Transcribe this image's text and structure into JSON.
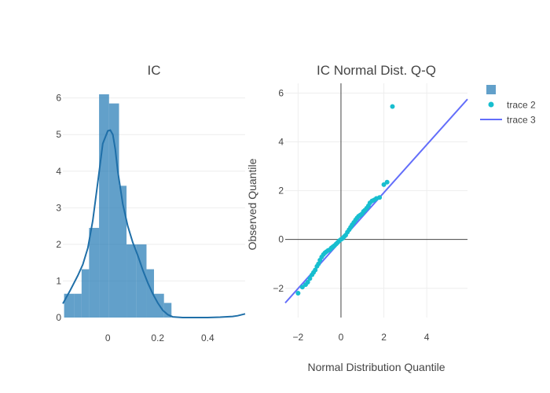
{
  "colors": {
    "hist_fill": "#1f77b4",
    "kde_line": "#1f6fa8",
    "scatter": "#17becf",
    "ref_line": "#636efa",
    "grid": "#eeeeee",
    "zeroline": "#444444",
    "text": "#444444"
  },
  "chart_data": [
    {
      "type": "bar",
      "subtype": "histogram_with_kde",
      "title": "IC",
      "xlabel": "",
      "ylabel": "",
      "xlim": [
        -0.18,
        0.55
      ],
      "ylim": [
        0,
        6.4
      ],
      "xticks": [
        0,
        0.2,
        0.4
      ],
      "xtick_labels": [
        "0",
        "0.2",
        "0.4"
      ],
      "yticks": [
        0,
        1,
        2,
        3,
        4,
        5,
        6
      ],
      "ytick_labels": [
        "0",
        "1",
        "2",
        "3",
        "4",
        "5",
        "6"
      ],
      "bin_edges": [
        -0.175,
        -0.135,
        -0.105,
        -0.075,
        -0.035,
        0.005,
        0.045,
        0.075,
        0.115,
        0.155,
        0.185,
        0.225,
        0.255
      ],
      "values": [
        0.65,
        0.65,
        1.32,
        2.45,
        6.1,
        5.85,
        3.6,
        2.0,
        2.0,
        1.32,
        0.65,
        0.4
      ],
      "kde_x": [
        -0.18,
        -0.15,
        -0.12,
        -0.1,
        -0.08,
        -0.06,
        -0.04,
        -0.02,
        0.0,
        0.01,
        0.02,
        0.03,
        0.04,
        0.06,
        0.08,
        0.1,
        0.12,
        0.14,
        0.16,
        0.18,
        0.2,
        0.22,
        0.24,
        0.26,
        0.3,
        0.35,
        0.4,
        0.45,
        0.5,
        0.52,
        0.55
      ],
      "kde_y": [
        0.38,
        0.75,
        1.15,
        1.45,
        1.9,
        2.65,
        3.7,
        4.75,
        5.1,
        5.12,
        5.0,
        4.6,
        4.0,
        3.1,
        2.5,
        2.05,
        1.7,
        1.3,
        0.95,
        0.65,
        0.4,
        0.2,
        0.08,
        0.02,
        0.0,
        0.0,
        0.0,
        0.01,
        0.03,
        0.05,
        0.1
      ]
    },
    {
      "type": "scatter",
      "subtype": "qq_plot",
      "title": "IC Normal Dist. Q-Q",
      "xlabel": "Normal Distribution Quantile",
      "ylabel": "Observed Quantile",
      "xlim": [
        -2.6,
        5.9
      ],
      "ylim": [
        -3.2,
        6.4
      ],
      "xticks": [
        -2,
        0,
        2,
        4
      ],
      "xtick_labels": [
        "−2",
        "0",
        "2",
        "4"
      ],
      "yticks": [
        -2,
        0,
        2,
        4,
        6
      ],
      "ytick_labels": [
        "−2",
        "0",
        "2",
        "4",
        "6"
      ],
      "points_x": [
        -2.0,
        -1.8,
        -1.65,
        -1.55,
        -1.45,
        -1.35,
        -1.28,
        -1.2,
        -1.12,
        -1.05,
        -0.98,
        -0.9,
        -0.82,
        -0.75,
        -0.68,
        -0.6,
        -0.52,
        -0.45,
        -0.38,
        -0.3,
        -0.22,
        -0.15,
        -0.08,
        0.0,
        0.08,
        0.15,
        0.22,
        0.3,
        0.38,
        0.45,
        0.52,
        0.6,
        0.68,
        0.75,
        0.82,
        0.9,
        0.98,
        1.05,
        1.12,
        1.2,
        1.28,
        1.35,
        1.45,
        1.55,
        1.65,
        1.8,
        2.0,
        2.15,
        2.4
      ],
      "points_y": [
        -2.2,
        -1.95,
        -1.85,
        -1.75,
        -1.6,
        -1.45,
        -1.35,
        -1.25,
        -1.1,
        -1.0,
        -0.85,
        -0.72,
        -0.62,
        -0.55,
        -0.5,
        -0.45,
        -0.42,
        -0.35,
        -0.3,
        -0.25,
        -0.18,
        -0.12,
        -0.05,
        0.0,
        0.05,
        0.12,
        0.18,
        0.3,
        0.4,
        0.5,
        0.6,
        0.7,
        0.8,
        0.88,
        0.95,
        1.0,
        1.05,
        1.15,
        1.2,
        1.28,
        1.38,
        1.5,
        1.58,
        1.62,
        1.68,
        1.72,
        2.25,
        2.35,
        5.45
      ],
      "ref_line": {
        "x": [
          -2.6,
          5.9
        ],
        "y": [
          -2.6,
          5.75
        ]
      }
    }
  ],
  "legend": {
    "items": [
      {
        "symbol": "square",
        "label": ""
      },
      {
        "symbol": "circle",
        "label": "trace 2"
      },
      {
        "symbol": "line",
        "label": "trace 3"
      }
    ]
  }
}
